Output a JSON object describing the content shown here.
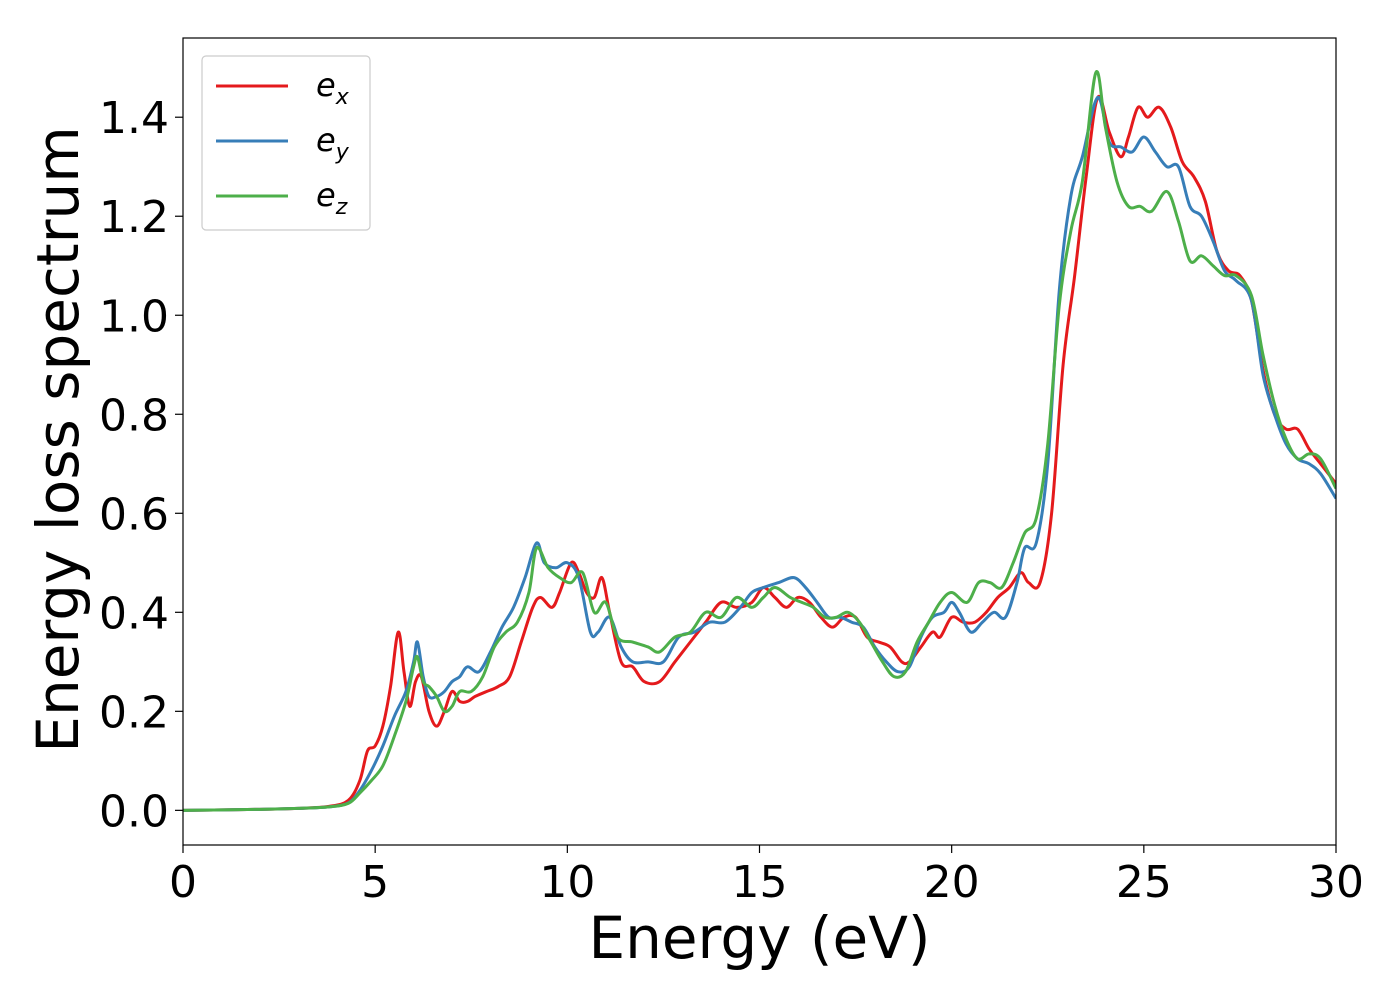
{
  "chart_data": {
    "type": "line",
    "title": "",
    "xlabel": "Energy (eV)",
    "ylabel": "Energy loss spectrum",
    "xlim": [
      0,
      30
    ],
    "ylim": [
      -0.07,
      1.56
    ],
    "xticks": [
      0,
      5,
      10,
      15,
      20,
      25,
      30
    ],
    "xtick_labels": [
      "0",
      "5",
      "10",
      "15",
      "20",
      "25",
      "30"
    ],
    "yticks": [
      0.0,
      0.2,
      0.4,
      0.6,
      0.8,
      1.0,
      1.2,
      1.4
    ],
    "ytick_labels": [
      "0.0",
      "0.2",
      "0.4",
      "0.6",
      "0.8",
      "1.0",
      "1.2",
      "1.4"
    ],
    "grid": false,
    "legend_position": "top-left",
    "series": [
      {
        "name": "ex",
        "legend_base": "e",
        "legend_sub": "x",
        "color": "#e41a1c",
        "points": [
          [
            0,
            0.0
          ],
          [
            2,
            0.002
          ],
          [
            3,
            0.004
          ],
          [
            3.8,
            0.008
          ],
          [
            4.3,
            0.02
          ],
          [
            4.6,
            0.06
          ],
          [
            4.8,
            0.12
          ],
          [
            5.0,
            0.13
          ],
          [
            5.2,
            0.17
          ],
          [
            5.4,
            0.25
          ],
          [
            5.6,
            0.36
          ],
          [
            5.75,
            0.28
          ],
          [
            5.9,
            0.21
          ],
          [
            6.05,
            0.26
          ],
          [
            6.2,
            0.27
          ],
          [
            6.4,
            0.2
          ],
          [
            6.6,
            0.17
          ],
          [
            6.8,
            0.2
          ],
          [
            7.0,
            0.24
          ],
          [
            7.2,
            0.22
          ],
          [
            7.4,
            0.22
          ],
          [
            7.6,
            0.23
          ],
          [
            7.9,
            0.24
          ],
          [
            8.2,
            0.25
          ],
          [
            8.5,
            0.27
          ],
          [
            8.8,
            0.34
          ],
          [
            9.1,
            0.41
          ],
          [
            9.3,
            0.43
          ],
          [
            9.6,
            0.41
          ],
          [
            9.8,
            0.44
          ],
          [
            10.1,
            0.5
          ],
          [
            10.3,
            0.48
          ],
          [
            10.5,
            0.44
          ],
          [
            10.7,
            0.43
          ],
          [
            10.9,
            0.47
          ],
          [
            11.1,
            0.4
          ],
          [
            11.4,
            0.3
          ],
          [
            11.7,
            0.29
          ],
          [
            12.0,
            0.26
          ],
          [
            12.4,
            0.26
          ],
          [
            12.8,
            0.3
          ],
          [
            13.2,
            0.34
          ],
          [
            13.6,
            0.38
          ],
          [
            14.0,
            0.42
          ],
          [
            14.4,
            0.41
          ],
          [
            14.8,
            0.42
          ],
          [
            15.1,
            0.45
          ],
          [
            15.4,
            0.43
          ],
          [
            15.7,
            0.41
          ],
          [
            16.0,
            0.43
          ],
          [
            16.3,
            0.42
          ],
          [
            16.6,
            0.39
          ],
          [
            16.9,
            0.37
          ],
          [
            17.2,
            0.39
          ],
          [
            17.5,
            0.39
          ],
          [
            17.8,
            0.35
          ],
          [
            18.1,
            0.34
          ],
          [
            18.4,
            0.33
          ],
          [
            18.7,
            0.3
          ],
          [
            18.9,
            0.3
          ],
          [
            19.2,
            0.33
          ],
          [
            19.5,
            0.36
          ],
          [
            19.7,
            0.35
          ],
          [
            20.0,
            0.39
          ],
          [
            20.3,
            0.38
          ],
          [
            20.6,
            0.38
          ],
          [
            20.9,
            0.4
          ],
          [
            21.2,
            0.43
          ],
          [
            21.5,
            0.45
          ],
          [
            21.8,
            0.48
          ],
          [
            22.0,
            0.46
          ],
          [
            22.3,
            0.46
          ],
          [
            22.6,
            0.6
          ],
          [
            22.9,
            0.9
          ],
          [
            23.2,
            1.08
          ],
          [
            23.5,
            1.28
          ],
          [
            23.8,
            1.44
          ],
          [
            24.1,
            1.37
          ],
          [
            24.4,
            1.32
          ],
          [
            24.6,
            1.36
          ],
          [
            24.85,
            1.42
          ],
          [
            25.1,
            1.4
          ],
          [
            25.4,
            1.42
          ],
          [
            25.7,
            1.38
          ],
          [
            26.0,
            1.31
          ],
          [
            26.3,
            1.28
          ],
          [
            26.6,
            1.23
          ],
          [
            26.9,
            1.13
          ],
          [
            27.2,
            1.09
          ],
          [
            27.5,
            1.08
          ],
          [
            27.8,
            1.03
          ],
          [
            28.1,
            0.89
          ],
          [
            28.4,
            0.8
          ],
          [
            28.7,
            0.77
          ],
          [
            29.0,
            0.77
          ],
          [
            29.3,
            0.73
          ],
          [
            29.6,
            0.7
          ],
          [
            30.0,
            0.66
          ]
        ]
      },
      {
        "name": "ey",
        "legend_base": "e",
        "legend_sub": "y",
        "color": "#377eb8",
        "points": [
          [
            0,
            0.0
          ],
          [
            2,
            0.002
          ],
          [
            3,
            0.004
          ],
          [
            3.8,
            0.007
          ],
          [
            4.3,
            0.015
          ],
          [
            4.6,
            0.04
          ],
          [
            4.9,
            0.08
          ],
          [
            5.2,
            0.13
          ],
          [
            5.5,
            0.19
          ],
          [
            5.8,
            0.24
          ],
          [
            6.0,
            0.3
          ],
          [
            6.1,
            0.34
          ],
          [
            6.25,
            0.27
          ],
          [
            6.4,
            0.23
          ],
          [
            6.6,
            0.23
          ],
          [
            6.8,
            0.24
          ],
          [
            7.0,
            0.26
          ],
          [
            7.2,
            0.27
          ],
          [
            7.4,
            0.29
          ],
          [
            7.7,
            0.28
          ],
          [
            8.0,
            0.32
          ],
          [
            8.3,
            0.37
          ],
          [
            8.6,
            0.41
          ],
          [
            8.9,
            0.47
          ],
          [
            9.2,
            0.54
          ],
          [
            9.4,
            0.5
          ],
          [
            9.7,
            0.49
          ],
          [
            10.0,
            0.5
          ],
          [
            10.3,
            0.47
          ],
          [
            10.6,
            0.36
          ],
          [
            10.8,
            0.36
          ],
          [
            11.1,
            0.39
          ],
          [
            11.4,
            0.33
          ],
          [
            11.7,
            0.3
          ],
          [
            12.1,
            0.3
          ],
          [
            12.5,
            0.3
          ],
          [
            12.9,
            0.35
          ],
          [
            13.3,
            0.36
          ],
          [
            13.7,
            0.38
          ],
          [
            14.1,
            0.38
          ],
          [
            14.5,
            0.41
          ],
          [
            14.8,
            0.44
          ],
          [
            15.1,
            0.45
          ],
          [
            15.5,
            0.46
          ],
          [
            15.9,
            0.47
          ],
          [
            16.2,
            0.45
          ],
          [
            16.5,
            0.42
          ],
          [
            16.8,
            0.39
          ],
          [
            17.1,
            0.39
          ],
          [
            17.4,
            0.38
          ],
          [
            17.7,
            0.37
          ],
          [
            18.0,
            0.33
          ],
          [
            18.3,
            0.3
          ],
          [
            18.6,
            0.28
          ],
          [
            18.9,
            0.29
          ],
          [
            19.2,
            0.35
          ],
          [
            19.5,
            0.39
          ],
          [
            19.8,
            0.4
          ],
          [
            20.0,
            0.42
          ],
          [
            20.2,
            0.4
          ],
          [
            20.5,
            0.36
          ],
          [
            20.8,
            0.38
          ],
          [
            21.1,
            0.4
          ],
          [
            21.4,
            0.39
          ],
          [
            21.7,
            0.46
          ],
          [
            21.9,
            0.53
          ],
          [
            22.2,
            0.54
          ],
          [
            22.5,
            0.7
          ],
          [
            22.8,
            1.05
          ],
          [
            23.1,
            1.24
          ],
          [
            23.4,
            1.32
          ],
          [
            23.8,
            1.44
          ],
          [
            24.1,
            1.35
          ],
          [
            24.4,
            1.34
          ],
          [
            24.7,
            1.33
          ],
          [
            25.0,
            1.36
          ],
          [
            25.3,
            1.33
          ],
          [
            25.6,
            1.3
          ],
          [
            25.9,
            1.3
          ],
          [
            26.2,
            1.22
          ],
          [
            26.5,
            1.2
          ],
          [
            26.8,
            1.15
          ],
          [
            27.1,
            1.09
          ],
          [
            27.4,
            1.07
          ],
          [
            27.8,
            1.03
          ],
          [
            28.1,
            0.88
          ],
          [
            28.4,
            0.8
          ],
          [
            28.7,
            0.74
          ],
          [
            29.0,
            0.71
          ],
          [
            29.3,
            0.7
          ],
          [
            29.6,
            0.68
          ],
          [
            30.0,
            0.63
          ]
        ]
      },
      {
        "name": "ez",
        "legend_base": "e",
        "legend_sub": "z",
        "color": "#4daf4a",
        "points": [
          [
            0,
            0.0
          ],
          [
            2,
            0.002
          ],
          [
            3,
            0.004
          ],
          [
            3.8,
            0.007
          ],
          [
            4.3,
            0.014
          ],
          [
            4.6,
            0.035
          ],
          [
            4.9,
            0.06
          ],
          [
            5.2,
            0.09
          ],
          [
            5.5,
            0.15
          ],
          [
            5.8,
            0.22
          ],
          [
            6.0,
            0.29
          ],
          [
            6.1,
            0.31
          ],
          [
            6.25,
            0.26
          ],
          [
            6.4,
            0.25
          ],
          [
            6.6,
            0.23
          ],
          [
            6.8,
            0.2
          ],
          [
            7.0,
            0.21
          ],
          [
            7.2,
            0.24
          ],
          [
            7.5,
            0.24
          ],
          [
            7.8,
            0.27
          ],
          [
            8.1,
            0.33
          ],
          [
            8.4,
            0.36
          ],
          [
            8.7,
            0.38
          ],
          [
            9.0,
            0.44
          ],
          [
            9.2,
            0.53
          ],
          [
            9.5,
            0.49
          ],
          [
            9.8,
            0.47
          ],
          [
            10.1,
            0.46
          ],
          [
            10.4,
            0.48
          ],
          [
            10.7,
            0.4
          ],
          [
            11.0,
            0.42
          ],
          [
            11.3,
            0.35
          ],
          [
            11.7,
            0.34
          ],
          [
            12.1,
            0.33
          ],
          [
            12.4,
            0.32
          ],
          [
            12.8,
            0.35
          ],
          [
            13.2,
            0.36
          ],
          [
            13.6,
            0.4
          ],
          [
            14.0,
            0.39
          ],
          [
            14.4,
            0.43
          ],
          [
            14.8,
            0.41
          ],
          [
            15.1,
            0.43
          ],
          [
            15.4,
            0.45
          ],
          [
            15.8,
            0.43
          ],
          [
            16.1,
            0.42
          ],
          [
            16.4,
            0.41
          ],
          [
            16.7,
            0.39
          ],
          [
            17.0,
            0.39
          ],
          [
            17.3,
            0.4
          ],
          [
            17.6,
            0.38
          ],
          [
            17.9,
            0.34
          ],
          [
            18.2,
            0.3
          ],
          [
            18.5,
            0.27
          ],
          [
            18.8,
            0.28
          ],
          [
            19.1,
            0.34
          ],
          [
            19.4,
            0.38
          ],
          [
            19.7,
            0.42
          ],
          [
            20.0,
            0.44
          ],
          [
            20.4,
            0.42
          ],
          [
            20.7,
            0.46
          ],
          [
            21.0,
            0.46
          ],
          [
            21.3,
            0.45
          ],
          [
            21.6,
            0.5
          ],
          [
            21.9,
            0.56
          ],
          [
            22.2,
            0.59
          ],
          [
            22.5,
            0.74
          ],
          [
            22.8,
            1.02
          ],
          [
            23.1,
            1.17
          ],
          [
            23.4,
            1.27
          ],
          [
            23.75,
            1.49
          ],
          [
            24.0,
            1.38
          ],
          [
            24.3,
            1.27
          ],
          [
            24.6,
            1.22
          ],
          [
            24.9,
            1.22
          ],
          [
            25.2,
            1.21
          ],
          [
            25.6,
            1.25
          ],
          [
            25.9,
            1.19
          ],
          [
            26.2,
            1.11
          ],
          [
            26.5,
            1.12
          ],
          [
            26.8,
            1.1
          ],
          [
            27.1,
            1.08
          ],
          [
            27.4,
            1.08
          ],
          [
            27.8,
            1.04
          ],
          [
            28.1,
            0.92
          ],
          [
            28.4,
            0.82
          ],
          [
            28.7,
            0.75
          ],
          [
            29.0,
            0.71
          ],
          [
            29.3,
            0.72
          ],
          [
            29.6,
            0.71
          ],
          [
            30.0,
            0.65
          ]
        ]
      }
    ]
  }
}
